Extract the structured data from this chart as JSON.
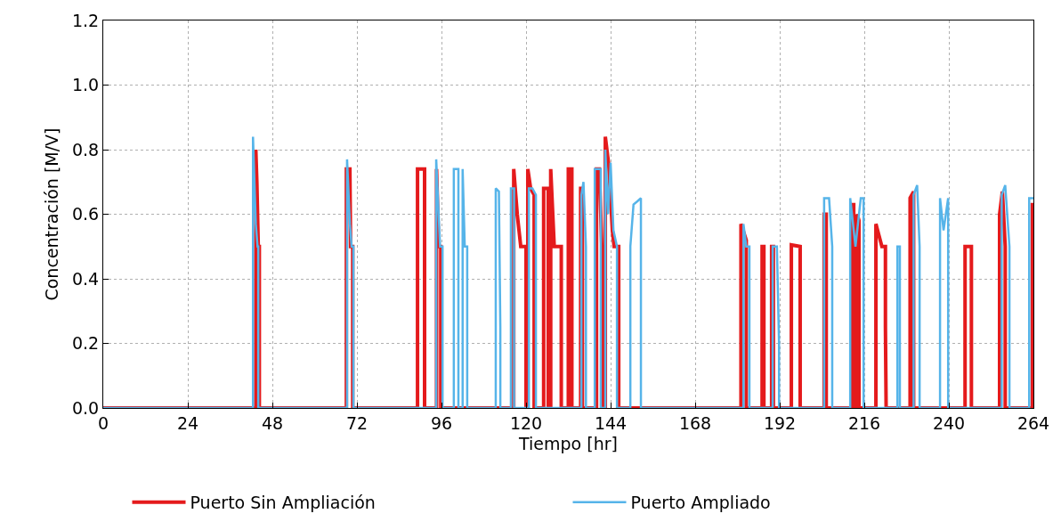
{
  "chart_data": {
    "type": "line",
    "xlabel": "Tiempo [hr]",
    "ylabel": "Concentración [M/V]",
    "xlim": [
      0,
      264
    ],
    "xticks": [
      0,
      24,
      48,
      72,
      96,
      120,
      144,
      168,
      192,
      216,
      240,
      264
    ],
    "ylim": [
      0,
      1.2
    ],
    "yticks": [
      {
        "value": 0,
        "label": "0.0"
      },
      {
        "value": 0.2,
        "label": "0.2"
      },
      {
        "value": 0.4,
        "label": "0.4"
      },
      {
        "value": 0.6,
        "label": "0.6"
      },
      {
        "value": 0.8,
        "label": "0.8"
      },
      {
        "value": 1,
        "label": "1.0"
      },
      {
        "value": 1.2,
        "label": "1.2"
      }
    ],
    "grid": true,
    "legend": "bottom",
    "marker": "none",
    "line_style": "solid",
    "series": [
      {
        "name": "Puerto Sin Ampliación",
        "color": "#e41a1c",
        "x": [
          0,
          43.3,
          43.3,
          43.6,
          44.0,
          44.3,
          44.3,
          69.0,
          69.0,
          70.0,
          70.2,
          70.8,
          70.8,
          89.2,
          89.2,
          91.2,
          91.2,
          94.6,
          94.6,
          95.2,
          95.8,
          95.8,
          116.5,
          116.5,
          117.5,
          118.5,
          120.0,
          120.0,
          120.5,
          120.5,
          121.3,
          122.3,
          122.3,
          125.0,
          125.0,
          126.3,
          126.3,
          127.0,
          127.0,
          128.0,
          130.0,
          130.0,
          132.0,
          132.0,
          133.0,
          133.0,
          135.5,
          135.5,
          136.0,
          136.0,
          140.0,
          140.0,
          140.8,
          141.5,
          141.5,
          142.5,
          142.5,
          143.5,
          144.5,
          145.0,
          146.3,
          146.3,
          181.0,
          181.0,
          182.5,
          182.5,
          187.0,
          187.0,
          187.5,
          187.5,
          189.7,
          189.7,
          190.2,
          190.2,
          195.3,
          195.3,
          197.8,
          197.8,
          204.6,
          204.6,
          205.2,
          205.2,
          212.7,
          212.7,
          213.0,
          213.0,
          214.0,
          214.0,
          214.5,
          214.5,
          219.3,
          219.3,
          221.0,
          222.0,
          222.0,
          222.2,
          229.0,
          229.0,
          230.0,
          230.0,
          244.6,
          244.6,
          246.4,
          246.4,
          254.4,
          254.4,
          255.2,
          256.0,
          256.0,
          263.7,
          263.7,
          264
        ],
        "values": [
          0,
          0,
          0.8,
          0.7,
          0.5,
          0.5,
          0,
          0,
          0.74,
          0.74,
          0.5,
          0.5,
          0,
          0,
          0.74,
          0.74,
          0,
          0,
          0.74,
          0.5,
          0.5,
          0,
          0,
          0.74,
          0.6,
          0.5,
          0.5,
          0,
          0,
          0.74,
          0.68,
          0.66,
          0,
          0,
          0.68,
          0.68,
          0,
          0,
          0.74,
          0.5,
          0.5,
          0,
          0,
          0.74,
          0.74,
          0,
          0,
          0.68,
          0.68,
          0,
          0,
          0.74,
          0.74,
          0.5,
          0,
          0,
          0.84,
          0.75,
          0.55,
          0.5,
          0.5,
          0,
          0,
          0.57,
          0.52,
          0,
          0,
          0.5,
          0.5,
          0,
          0,
          0.5,
          0.5,
          0,
          0,
          0.505,
          0.5,
          0,
          0,
          0.6,
          0.6,
          0,
          0,
          0.63,
          0.63,
          0,
          0,
          0.6,
          0.58,
          0,
          0,
          0.57,
          0.5,
          0.5,
          0.25,
          0,
          0,
          0.65,
          0.67,
          0,
          0,
          0.5,
          0.5,
          0,
          0,
          0.6,
          0.67,
          0.5,
          0,
          0,
          0.63,
          0.63
        ]
      },
      {
        "name": "Puerto Ampliado",
        "color": "#56b4e9",
        "x": [
          0,
          42.5,
          42.5,
          43.3,
          43.8,
          44.0,
          44.0,
          69.2,
          69.2,
          70.0,
          70.5,
          71.0,
          71.0,
          94.5,
          94.5,
          95.6,
          96.3,
          96.3,
          99.5,
          99.5,
          100.8,
          100.8,
          102.0,
          102.0,
          102.6,
          103.3,
          103.3,
          111.4,
          111.4,
          112.3,
          112.7,
          112.7,
          115.7,
          115.7,
          116.6,
          116.6,
          120.8,
          120.8,
          121.8,
          122.8,
          122.8,
          135.7,
          135.7,
          136.3,
          137.0,
          137.0,
          139.5,
          139.5,
          141.2,
          141.2,
          142.5,
          142.5,
          143.3,
          144.0,
          144.8,
          145.8,
          145.8,
          149.6,
          149.6,
          150.5,
          151.6,
          152.6,
          152.6,
          181.7,
          181.7,
          182.5,
          183.4,
          183.4,
          190.0,
          190.0,
          191.2,
          191.8,
          191.8,
          204.6,
          204.6,
          206.0,
          206.9,
          206.9,
          212.0,
          212.0,
          213.5,
          215.0,
          215.8,
          215.8,
          225.4,
          225.4,
          226.1,
          226.1,
          230.0,
          230.0,
          231.0,
          231.7,
          231.7,
          237.5,
          237.5,
          238.5,
          239.8,
          239.8,
          255.0,
          255.0,
          256.0,
          257.2,
          257.2,
          262.8,
          262.8,
          264
        ],
        "values": [
          0,
          0,
          0.84,
          0.57,
          0.5,
          0.5,
          0,
          0,
          0.77,
          0.57,
          0.5,
          0.5,
          0,
          0,
          0.77,
          0.5,
          0.5,
          0,
          0,
          0.74,
          0.74,
          0,
          0,
          0.74,
          0.5,
          0.5,
          0,
          0,
          0.68,
          0.67,
          0.25,
          0,
          0,
          0.68,
          0.68,
          0,
          0,
          0.68,
          0.68,
          0.66,
          0,
          0,
          0.66,
          0.7,
          0.5,
          0,
          0,
          0.74,
          0.74,
          0,
          0,
          0.8,
          0.6,
          0.76,
          0.55,
          0.5,
          0,
          0,
          0.5,
          0.63,
          0.64,
          0.65,
          0,
          0,
          0.57,
          0.5,
          0.5,
          0,
          0,
          0.5,
          0.5,
          0.2,
          0,
          0,
          0.65,
          0.65,
          0.5,
          0,
          0,
          0.65,
          0.5,
          0.65,
          0.65,
          0,
          0,
          0.5,
          0.5,
          0,
          0,
          0.66,
          0.69,
          0.5,
          0,
          0,
          0.65,
          0.55,
          0.65,
          0,
          0,
          0.66,
          0.69,
          0.5,
          0,
          0,
          0.65,
          0.65
        ]
      }
    ]
  }
}
